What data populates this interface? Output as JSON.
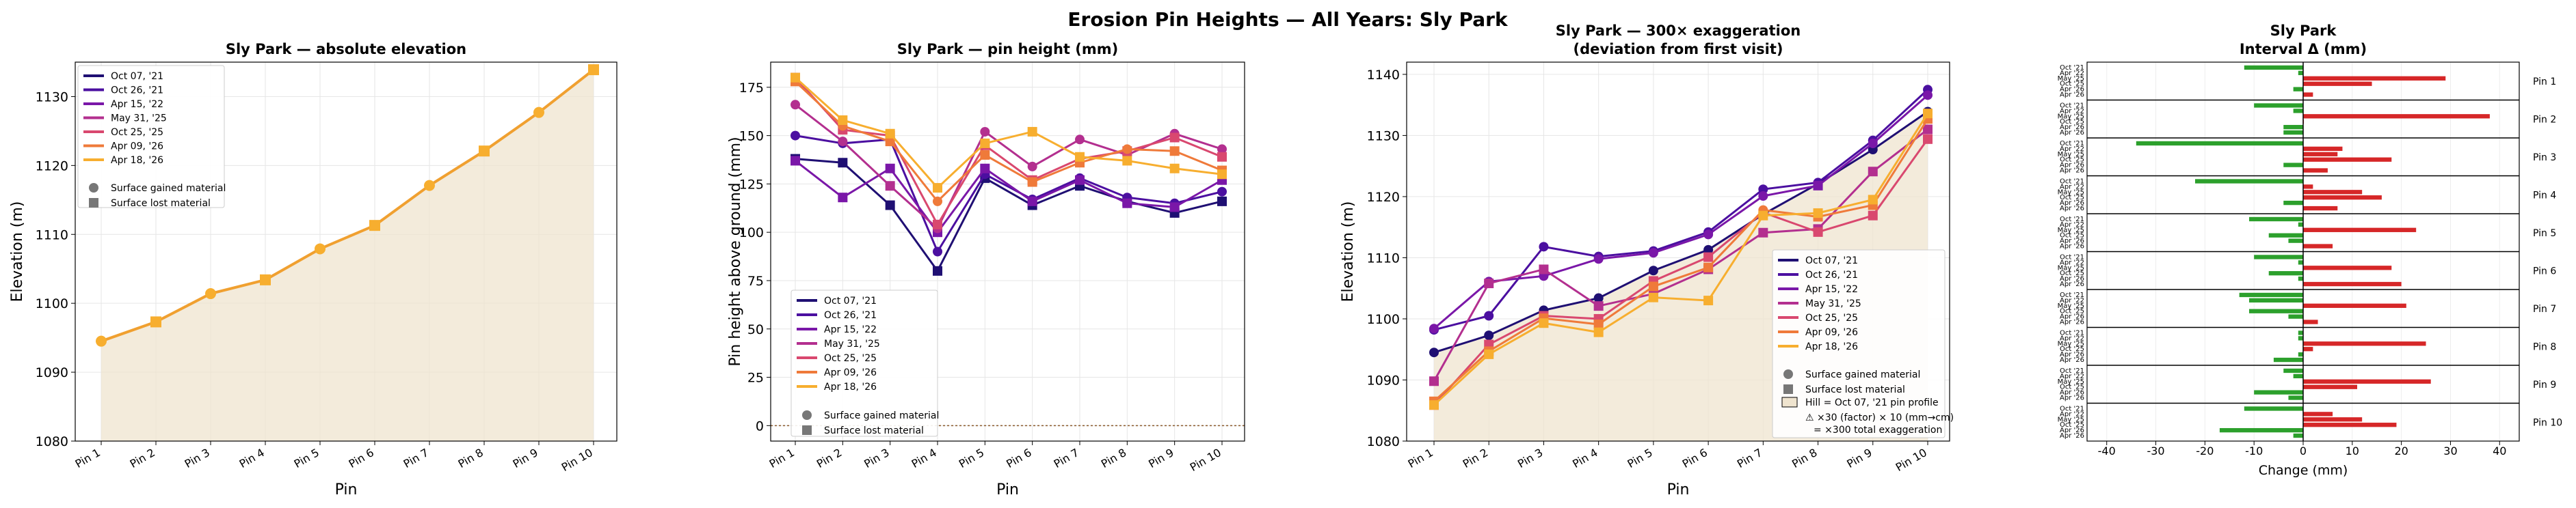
{
  "figure_title": "Erosion Pin Heights — All Years: Sly Park",
  "pins": [
    "Pin 1",
    "Pin 2",
    "Pin 3",
    "Pin 4",
    "Pin 5",
    "Pin 6",
    "Pin 7",
    "Pin 8",
    "Pin 9",
    "Pin 10"
  ],
  "visits": [
    {
      "name": "Oct 07, '21",
      "color": "#1f0f73"
    },
    {
      "name": "Oct 26, '21",
      "color": "#4b0fa0"
    },
    {
      "name": "Apr 15, '22",
      "color": "#7a17a8"
    },
    {
      "name": "May 31, '25",
      "color": "#b32f8f"
    },
    {
      "name": "Oct 25, '25",
      "color": "#d9486f"
    },
    {
      "name": "Apr 09, '26",
      "color": "#ef7a3a"
    },
    {
      "name": "Apr 18, '26",
      "color": "#f7ae2f"
    }
  ],
  "legend_extra": {
    "gained": "Surface gained material",
    "lost": "Surface lost material",
    "hill": "Hill = Oct 07, '21 pin profile",
    "exag1": "⚠ ×30 (factor) × 10 (mm→cm)",
    "exag2": "= ×300 total exaggeration"
  },
  "colors": {
    "gained": "#2ca02c",
    "lost": "#d62728",
    "hill": "#efe4cf",
    "hill_line": "#f0a030"
  },
  "chart_data": [
    {
      "type": "area",
      "title": "Sly Park — absolute elevation",
      "xlabel": "Pin",
      "ylabel": "Elevation (m)",
      "ylim": [
        1080,
        1135
      ],
      "yticks": [
        1080,
        1090,
        1100,
        1110,
        1120,
        1130
      ],
      "grid": true,
      "legend": "top-left",
      "categories": [
        "Pin 1",
        "Pin 2",
        "Pin 3",
        "Pin 4",
        "Pin 5",
        "Pin 6",
        "Pin 7",
        "Pin 8",
        "Pin 9",
        "Pin 10"
      ],
      "values": [
        1094.5,
        1097.3,
        1101.4,
        1103.4,
        1107.9,
        1111.3,
        1117.1,
        1122.1,
        1127.7,
        1133.9
      ]
    },
    {
      "type": "line",
      "title": "Sly Park — pin height (mm)",
      "xlabel": "Pin",
      "ylabel": "Pin height above ground (mm)",
      "ylim": [
        -8,
        188
      ],
      "yticks": [
        0,
        25,
        50,
        75,
        100,
        125,
        150,
        175
      ],
      "grid": true,
      "legend": "bottom-left",
      "categories": [
        "Pin 1",
        "Pin 2",
        "Pin 3",
        "Pin 4",
        "Pin 5",
        "Pin 6",
        "Pin 7",
        "Pin 8",
        "Pin 9",
        "Pin 10"
      ],
      "series": [
        {
          "name": "Oct 07, '21",
          "values": [
            138,
            136,
            114,
            80,
            128,
            114,
            124,
            116,
            110,
            116
          ]
        },
        {
          "name": "Oct 26, '21",
          "values": [
            150,
            146,
            148,
            90,
            130,
            117,
            128,
            118,
            115,
            121
          ]
        },
        {
          "name": "Apr 15, '22",
          "values": [
            137,
            118,
            133,
            100,
            133,
            116,
            127,
            115,
            113,
            127
          ]
        },
        {
          "name": "May 31, '25",
          "values": [
            166,
            147,
            124,
            102,
            152,
            134,
            148,
            140,
            151,
            143
          ]
        },
        {
          "name": "Oct 25, '25",
          "values": [
            180,
            153,
            150,
            104,
            145,
            127,
            138,
            142,
            149,
            139
          ]
        },
        {
          "name": "Apr 09, '26",
          "values": [
            178,
            155,
            147,
            116,
            140,
            126,
            136,
            143,
            142,
            132
          ]
        },
        {
          "name": "Apr 18, '26",
          "values": [
            180,
            158,
            151,
            123,
            146,
            152,
            139,
            137,
            133,
            130
          ]
        }
      ]
    },
    {
      "type": "line",
      "title": "Sly Park — 300× exaggeration",
      "subtitle": "(deviation from first visit)",
      "xlabel": "Pin",
      "ylabel": "Elevation (m)",
      "ylim": [
        1080,
        1142
      ],
      "yticks": [
        1080,
        1090,
        1100,
        1110,
        1120,
        1130,
        1140
      ],
      "grid": true,
      "legend": "bottom-right",
      "categories": [
        "Pin 1",
        "Pin 2",
        "Pin 3",
        "Pin 4",
        "Pin 5",
        "Pin 6",
        "Pin 7",
        "Pin 8",
        "Pin 9",
        "Pin 10"
      ],
      "hill": [
        1094.5,
        1097.3,
        1101.4,
        1103.4,
        1107.9,
        1111.3,
        1117.1,
        1122.1,
        1127.7,
        1133.9
      ],
      "series": [
        {
          "name": "Oct 07, '21",
          "values": [
            1094.5,
            1097.3,
            1101.4,
            1103.4,
            1107.9,
            1111.3,
            1117.1,
            1122.1,
            1127.7,
            1133.9
          ]
        },
        {
          "name": "Oct 26, '21",
          "values": [
            1098.2,
            1100.5,
            1111.8,
            1110.2,
            1111.1,
            1114.2,
            1121.2,
            1122.3,
            1129.2,
            1137.5
          ]
        },
        {
          "name": "Apr 15, '22",
          "values": [
            1098.4,
            1106.1,
            1107.0,
            1109.8,
            1110.8,
            1113.8,
            1120.1,
            1121.8,
            1128.7,
            1136.6
          ]
        },
        {
          "name": "May 31, '25",
          "values": [
            1089.8,
            1105.8,
            1108.1,
            1102.1,
            1104.1,
            1108.1,
            1114.1,
            1114.7,
            1124.1,
            1131.0
          ]
        },
        {
          "name": "Oct 25, '25",
          "values": [
            1085.9,
            1095.8,
            1100.5,
            1100.0,
            1106.2,
            1110.1,
            1117.4,
            1114.2,
            1116.9,
            1129.4
          ]
        },
        {
          "name": "Apr 09, '26",
          "values": [
            1086.5,
            1094.7,
            1100.1,
            1099.1,
            1105.3,
            1108.4,
            1117.8,
            1116.7,
            1118.6,
            1132.7
          ]
        },
        {
          "name": "Apr 18, '26",
          "values": [
            1085.9,
            1094.2,
            1099.3,
            1097.8,
            1103.5,
            1103.0,
            1116.9,
            1117.3,
            1119.5,
            1133.6
          ]
        }
      ]
    },
    {
      "type": "bar",
      "orientation": "horizontal",
      "title": "Sly Park",
      "subtitle": "Interval Δ (mm)",
      "xlabel": "Change (mm)",
      "xlim": [
        -44,
        44
      ],
      "xticks": [
        -40,
        -30,
        -20,
        -10,
        0,
        10,
        20,
        30,
        40
      ],
      "groups": [
        "Pin 1",
        "Pin 2",
        "Pin 3",
        "Pin 4",
        "Pin 5",
        "Pin 6",
        "Pin 7",
        "Pin 8",
        "Pin 9",
        "Pin 10"
      ],
      "interval_labels": [
        "Oct '21",
        "Apr '22",
        "May '25",
        "Oct '25",
        "Apr '26",
        "Apr '26"
      ],
      "values": [
        [
          -12,
          -1,
          29,
          14,
          -2,
          2
        ],
        [
          -10,
          -2,
          38,
          0,
          -4,
          -4
        ],
        [
          -34,
          8,
          7,
          18,
          -4,
          5
        ],
        [
          -22,
          2,
          12,
          16,
          -4,
          7
        ],
        [
          -11,
          -1,
          23,
          -7,
          -3,
          6
        ],
        [
          -10,
          -1,
          18,
          -7,
          -1,
          20
        ],
        [
          -13,
          -11,
          21,
          -11,
          -3,
          3
        ],
        [
          -1,
          -1,
          25,
          2,
          -1,
          -6
        ],
        [
          -4,
          -2,
          26,
          11,
          -10,
          -3
        ],
        [
          -12,
          6,
          12,
          19,
          -17,
          -2
        ]
      ]
    }
  ]
}
